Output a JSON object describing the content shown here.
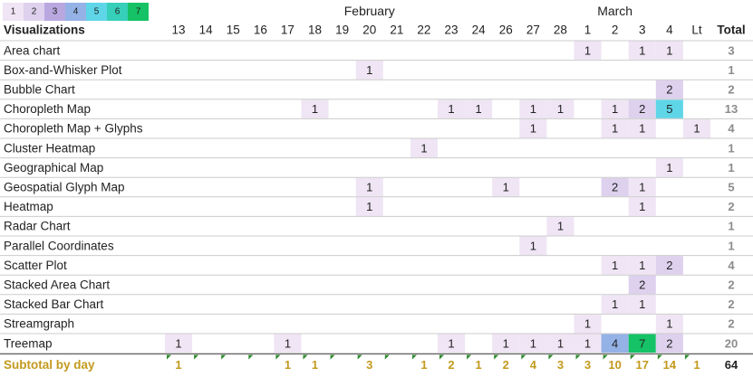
{
  "chart_data": {
    "type": "heatmap",
    "title": "",
    "legend": {
      "levels": [
        "1",
        "2",
        "3",
        "4",
        "5",
        "6",
        "7"
      ],
      "colors": [
        "#efe5f4",
        "#ddd1ee",
        "#b9a8e0",
        "#94b2e6",
        "#5fd6e8",
        "#36cfb9",
        "#15c266"
      ],
      "placement": "top-left"
    },
    "month_labels": [
      {
        "label": "February",
        "col": 7
      },
      {
        "label": "March",
        "col": 16
      }
    ],
    "row_header": "Visualizations",
    "total_header": "Total",
    "columns": [
      "13",
      "14",
      "15",
      "16",
      "17",
      "18",
      "19",
      "20",
      "21",
      "22",
      "23",
      "24",
      "26",
      "27",
      "28",
      "1",
      "2",
      "3",
      "4",
      "Lt"
    ],
    "rows": [
      {
        "name": "Area chart",
        "cells": {
          "15": 1,
          "17": 1,
          "18": 1
        },
        "total": "3"
      },
      {
        "name": "Box-and-Whisker Plot",
        "cells": {
          "7": 1
        },
        "total": "1"
      },
      {
        "name": "Bubble Chart",
        "cells": {
          "18": 2
        },
        "total": "2"
      },
      {
        "name": "Choropleth Map",
        "cells": {
          "5": 1,
          "10": 1,
          "11": 1,
          "13": 1,
          "14": 1,
          "16": 1,
          "17": 2,
          "18": 5
        },
        "total": "13"
      },
      {
        "name": "Choropleth Map + Glyphs",
        "cells": {
          "13": 1,
          "16": 1,
          "17": 1,
          "19": 1
        },
        "total": "4"
      },
      {
        "name": "Cluster Heatmap",
        "cells": {
          "9": 1
        },
        "total": "1"
      },
      {
        "name": "Geographical Map",
        "cells": {
          "18": 1
        },
        "total": "1"
      },
      {
        "name": "Geospatial Glyph Map",
        "cells": {
          "7": 1,
          "12": 1,
          "16": 2,
          "17": 1
        },
        "total": "5"
      },
      {
        "name": "Heatmap",
        "cells": {
          "7": 1,
          "17": 1
        },
        "total": "2"
      },
      {
        "name": "Radar Chart",
        "cells": {
          "14": 1
        },
        "total": "1"
      },
      {
        "name": "Parallel Coordinates",
        "cells": {
          "13": 1
        },
        "total": "1"
      },
      {
        "name": "Scatter Plot",
        "cells": {
          "16": 1,
          "17": 1,
          "18": 2
        },
        "total": "4"
      },
      {
        "name": "Stacked Area Chart",
        "cells": {
          "17": 2
        },
        "total": "2"
      },
      {
        "name": "Stacked Bar Chart",
        "cells": {
          "16": 1,
          "17": 1
        },
        "total": "2"
      },
      {
        "name": "Streamgraph",
        "cells": {
          "15": 1,
          "18": 1
        },
        "total": "2"
      },
      {
        "name": "Treemap",
        "cells": {
          "0": 1,
          "4": 1,
          "10": 1,
          "12": 1,
          "13": 1,
          "14": 1,
          "15": 1,
          "16": 4,
          "17": 7,
          "18": 2
        },
        "total": "20"
      }
    ],
    "subtotal": {
      "label": "Subtotal by day",
      "values": [
        "1",
        "",
        "",
        "",
        "1",
        "1",
        "",
        "3",
        "",
        "1",
        "2",
        "1",
        "2",
        "4",
        "3",
        "3",
        "10",
        "17",
        "14",
        "1"
      ],
      "total": "64"
    },
    "colors": {
      "subtotal_text": "#c39a1e",
      "total_text": "#8c8c8c",
      "grid": "#cccccc",
      "marker": "#2e8b2e"
    }
  }
}
